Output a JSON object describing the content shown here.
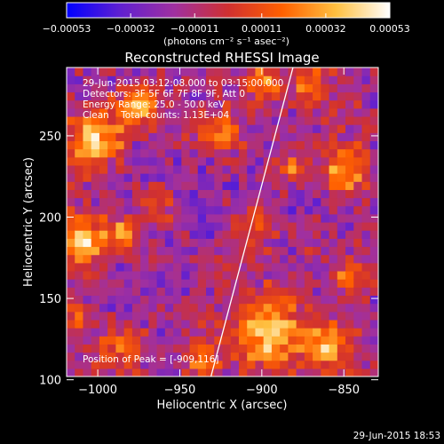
{
  "chart_data": {
    "type": "heatmap",
    "title": "Reconstructed RHESSI Image",
    "xlabel": "Heliocentric X (arcsec)",
    "ylabel": "Heliocentric Y (arcsec)",
    "xlim": [
      -1019,
      -829
    ],
    "ylim": [
      102,
      292
    ],
    "x_ticks": [
      -1000,
      -950,
      -900,
      -850
    ],
    "x_tick_labels": [
      "−1000",
      "−950",
      "−900",
      "−850"
    ],
    "y_ticks": [
      100,
      150,
      200,
      250
    ],
    "y_tick_labels": [
      "100",
      "150",
      "200",
      "250"
    ],
    "colorbar": {
      "ticks": [
        -0.00053,
        -0.00032,
        -0.00011,
        0.00011,
        0.00032,
        0.00053
      ],
      "tick_labels": [
        "−0.00053",
        "−0.00032",
        "−0.00011",
        "0.00011",
        "0.00032",
        "0.00053"
      ],
      "label": "(photons cm⁻² s⁻¹ asec⁻²)",
      "colors": [
        "#0000ff",
        "#6020d0",
        "#a030a0",
        "#d03030",
        "#ff6000",
        "#ffc040",
        "#ffffff"
      ]
    },
    "annotations": [
      "29-Jun-2015 03:12:08.000 to 03:15:00.000",
      "Detectors: 3F 5F 6F 7F 8F 9F, Att 0",
      "Energy Range: 25.0 - 50.0 keV",
      "Clean    Total counts: 1.13E+04"
    ],
    "peak_label": "Position of Peak = [-909,116]",
    "peak": [
      -909,
      116
    ],
    "limb_line": [
      [
        -931,
        102
      ],
      [
        -881,
        292
      ]
    ],
    "grid": false
  },
  "footer": {
    "timestamp": "29-Jun-2015 18:53"
  }
}
